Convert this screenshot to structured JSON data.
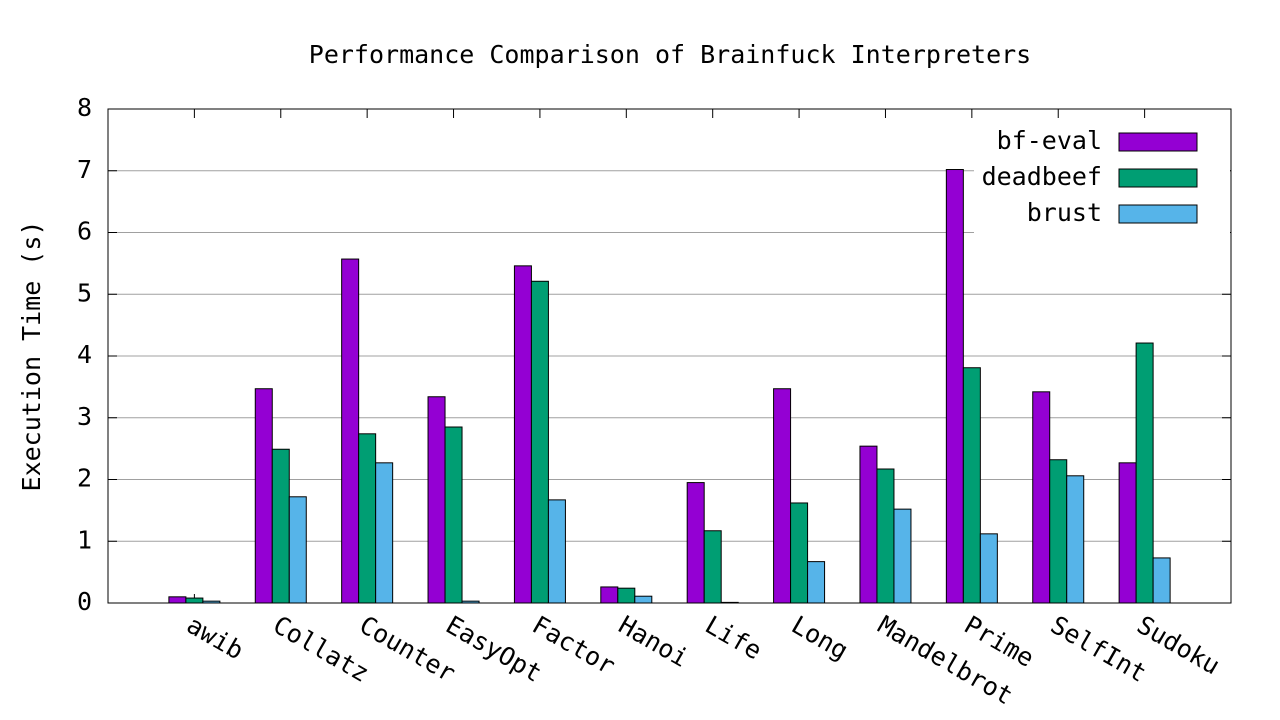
{
  "chart_data": {
    "type": "bar",
    "title": "Performance Comparison of Brainfuck Interpreters",
    "y_label": "Execution Time (s)",
    "categories": [
      "awib",
      "Collatz",
      "Counter",
      "EasyOpt",
      "Factor",
      "Hanoi",
      "Life",
      "Long",
      "Mandelbrot",
      "Prime",
      "SelfInt",
      "Sudoku"
    ],
    "series": [
      {
        "name": "bf-eval",
        "color": "#9400d3",
        "values": [
          0.1,
          3.47,
          5.57,
          3.34,
          5.46,
          0.26,
          1.95,
          3.47,
          2.54,
          7.02,
          3.42,
          2.27
        ]
      },
      {
        "name": "deadbeef",
        "color": "#009e73",
        "values": [
          0.08,
          2.49,
          2.74,
          2.85,
          5.21,
          0.24,
          1.17,
          1.62,
          2.17,
          3.81,
          2.32,
          4.21
        ]
      },
      {
        "name": "brust",
        "color": "#56b4e9",
        "values": [
          0.03,
          1.72,
          2.27,
          0.03,
          1.67,
          0.11,
          0.01,
          0.67,
          1.52,
          1.12,
          2.06,
          0.73
        ]
      }
    ],
    "ylim": [
      0,
      8
    ],
    "yticks": [
      0,
      1,
      2,
      3,
      4,
      5,
      6,
      7,
      8
    ],
    "grid": true,
    "legend": "top-right"
  }
}
